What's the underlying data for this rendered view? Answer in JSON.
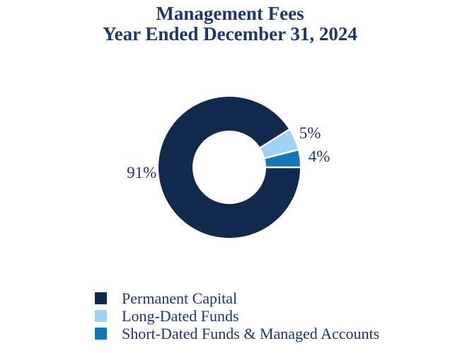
{
  "title": {
    "line1": "Management Fees",
    "line2": "Year Ended December 31, 2024"
  },
  "colors": {
    "background": "#FFFFFF",
    "title_text": "#1F3864",
    "label_text": "#1F3864",
    "segment_gap": "#FFFFFF",
    "navy": "#12294E",
    "light_blue": "#9FD3F5",
    "medium_blue": "#1478B4"
  },
  "chart_data": {
    "type": "pie",
    "subtype": "donut",
    "title": "Management Fees Year Ended December 31, 2024",
    "categories": [
      "Permanent Capital",
      "Long-Dated Funds",
      "Short-Dated Funds & Managed Accounts"
    ],
    "values": [
      91,
      5,
      4
    ],
    "unit": "%",
    "total": 100,
    "start_angle_deg": 0,
    "direction": "clockwise",
    "donut_hole_ratio": 0.52,
    "grid": false,
    "legend_position": "bottom-left",
    "segments": [
      {
        "label": "Permanent Capital",
        "value": 91,
        "display": "91%",
        "color": "#12294E",
        "label_angle_deg": 183.5,
        "label_radius": 124
      },
      {
        "label": "Long-Dated Funds",
        "value": 5,
        "display": "5%",
        "color": "#9FD3F5",
        "label_angle_deg": 23,
        "label_radius": 124
      },
      {
        "label": "Short-Dated Funds & Managed Accounts",
        "value": 4,
        "display": "4%",
        "color": "#1478B4",
        "label_angle_deg": 7,
        "label_radius": 128
      }
    ]
  },
  "legend": {
    "items": [
      {
        "label": "Permanent Capital",
        "color": "#12294E"
      },
      {
        "label": "Long-Dated Funds",
        "color": "#9FD3F5"
      },
      {
        "label": "Short-Dated Funds & Managed Accounts",
        "color": "#1478B4"
      }
    ]
  }
}
